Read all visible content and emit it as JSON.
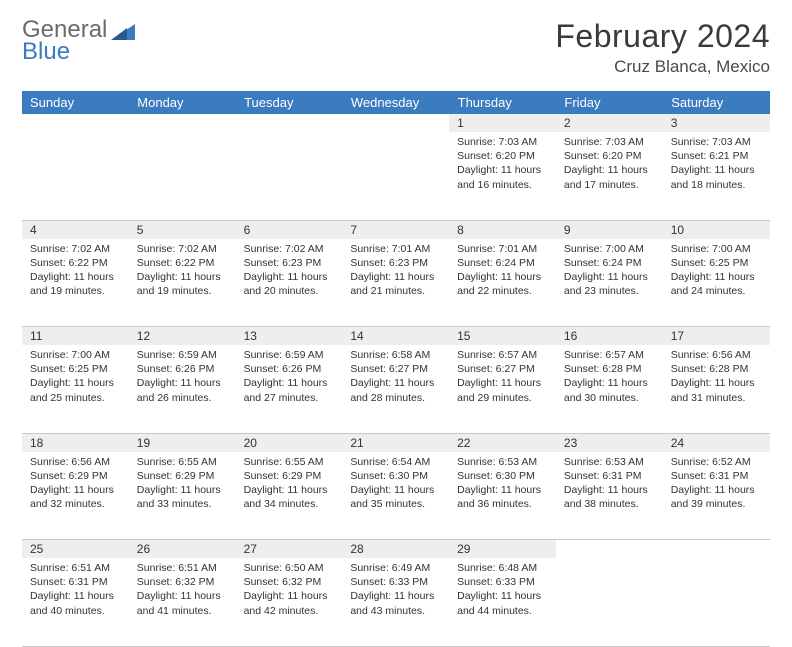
{
  "logo": {
    "word1": "General",
    "word2": "Blue"
  },
  "title": "February 2024",
  "location": "Cruz Blanca, Mexico",
  "colors": {
    "header_bg": "#3b7bbf",
    "header_text": "#ffffff",
    "daynum_bg": "#eeeeee",
    "border": "#c8c8c8",
    "text": "#333333",
    "logo_gray": "#6b6b6b",
    "logo_blue": "#3b7bbf"
  },
  "weekdays": [
    "Sunday",
    "Monday",
    "Tuesday",
    "Wednesday",
    "Thursday",
    "Friday",
    "Saturday"
  ],
  "weeks": [
    [
      null,
      null,
      null,
      null,
      {
        "n": "1",
        "sr": "7:03 AM",
        "ss": "6:20 PM",
        "dl": "11 hours and 16 minutes."
      },
      {
        "n": "2",
        "sr": "7:03 AM",
        "ss": "6:20 PM",
        "dl": "11 hours and 17 minutes."
      },
      {
        "n": "3",
        "sr": "7:03 AM",
        "ss": "6:21 PM",
        "dl": "11 hours and 18 minutes."
      }
    ],
    [
      {
        "n": "4",
        "sr": "7:02 AM",
        "ss": "6:22 PM",
        "dl": "11 hours and 19 minutes."
      },
      {
        "n": "5",
        "sr": "7:02 AM",
        "ss": "6:22 PM",
        "dl": "11 hours and 19 minutes."
      },
      {
        "n": "6",
        "sr": "7:02 AM",
        "ss": "6:23 PM",
        "dl": "11 hours and 20 minutes."
      },
      {
        "n": "7",
        "sr": "7:01 AM",
        "ss": "6:23 PM",
        "dl": "11 hours and 21 minutes."
      },
      {
        "n": "8",
        "sr": "7:01 AM",
        "ss": "6:24 PM",
        "dl": "11 hours and 22 minutes."
      },
      {
        "n": "9",
        "sr": "7:00 AM",
        "ss": "6:24 PM",
        "dl": "11 hours and 23 minutes."
      },
      {
        "n": "10",
        "sr": "7:00 AM",
        "ss": "6:25 PM",
        "dl": "11 hours and 24 minutes."
      }
    ],
    [
      {
        "n": "11",
        "sr": "7:00 AM",
        "ss": "6:25 PM",
        "dl": "11 hours and 25 minutes."
      },
      {
        "n": "12",
        "sr": "6:59 AM",
        "ss": "6:26 PM",
        "dl": "11 hours and 26 minutes."
      },
      {
        "n": "13",
        "sr": "6:59 AM",
        "ss": "6:26 PM",
        "dl": "11 hours and 27 minutes."
      },
      {
        "n": "14",
        "sr": "6:58 AM",
        "ss": "6:27 PM",
        "dl": "11 hours and 28 minutes."
      },
      {
        "n": "15",
        "sr": "6:57 AM",
        "ss": "6:27 PM",
        "dl": "11 hours and 29 minutes."
      },
      {
        "n": "16",
        "sr": "6:57 AM",
        "ss": "6:28 PM",
        "dl": "11 hours and 30 minutes."
      },
      {
        "n": "17",
        "sr": "6:56 AM",
        "ss": "6:28 PM",
        "dl": "11 hours and 31 minutes."
      }
    ],
    [
      {
        "n": "18",
        "sr": "6:56 AM",
        "ss": "6:29 PM",
        "dl": "11 hours and 32 minutes."
      },
      {
        "n": "19",
        "sr": "6:55 AM",
        "ss": "6:29 PM",
        "dl": "11 hours and 33 minutes."
      },
      {
        "n": "20",
        "sr": "6:55 AM",
        "ss": "6:29 PM",
        "dl": "11 hours and 34 minutes."
      },
      {
        "n": "21",
        "sr": "6:54 AM",
        "ss": "6:30 PM",
        "dl": "11 hours and 35 minutes."
      },
      {
        "n": "22",
        "sr": "6:53 AM",
        "ss": "6:30 PM",
        "dl": "11 hours and 36 minutes."
      },
      {
        "n": "23",
        "sr": "6:53 AM",
        "ss": "6:31 PM",
        "dl": "11 hours and 38 minutes."
      },
      {
        "n": "24",
        "sr": "6:52 AM",
        "ss": "6:31 PM",
        "dl": "11 hours and 39 minutes."
      }
    ],
    [
      {
        "n": "25",
        "sr": "6:51 AM",
        "ss": "6:31 PM",
        "dl": "11 hours and 40 minutes."
      },
      {
        "n": "26",
        "sr": "6:51 AM",
        "ss": "6:32 PM",
        "dl": "11 hours and 41 minutes."
      },
      {
        "n": "27",
        "sr": "6:50 AM",
        "ss": "6:32 PM",
        "dl": "11 hours and 42 minutes."
      },
      {
        "n": "28",
        "sr": "6:49 AM",
        "ss": "6:33 PM",
        "dl": "11 hours and 43 minutes."
      },
      {
        "n": "29",
        "sr": "6:48 AM",
        "ss": "6:33 PM",
        "dl": "11 hours and 44 minutes."
      },
      null,
      null
    ]
  ],
  "labels": {
    "sunrise": "Sunrise:",
    "sunset": "Sunset:",
    "daylight": "Daylight:"
  }
}
